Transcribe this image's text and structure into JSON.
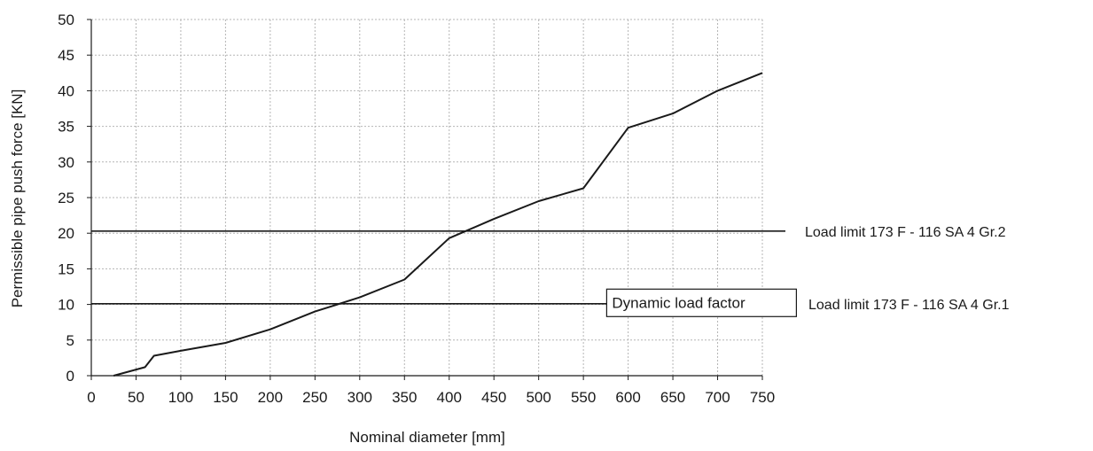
{
  "chart_data": {
    "type": "line",
    "title": "",
    "xlabel": "Nominal diameter [mm]",
    "ylabel": "Permissible pipe push force [KN]",
    "xlim": [
      0,
      750
    ],
    "ylim": [
      0,
      50
    ],
    "grid": true,
    "x_ticks": [
      0,
      50,
      100,
      150,
      200,
      250,
      300,
      350,
      400,
      450,
      500,
      550,
      600,
      650,
      700,
      750
    ],
    "y_ticks": [
      0,
      5,
      10,
      15,
      20,
      25,
      30,
      35,
      40,
      45,
      50
    ],
    "series": [
      {
        "x": [
          25,
          60,
          70,
          100,
          150,
          200,
          250,
          300,
          350,
          400,
          450,
          500,
          550,
          600,
          650,
          700,
          750
        ],
        "y": [
          0,
          1.2,
          2.8,
          3.5,
          4.6,
          6.5,
          9.0,
          11.0,
          13.5,
          19.3,
          22.0,
          24.5,
          26.3,
          34.8,
          36.8,
          40.0,
          42.5
        ]
      }
    ],
    "reference_lines": [
      {
        "y": 20.3,
        "label": "Load limit 173 F - 116 SA 4 Gr.2"
      },
      {
        "y": 10.1,
        "label": "Load limit  173 F - 116 SA 4 Gr.1"
      }
    ],
    "annotations": [
      {
        "text": "Dynamic load factor",
        "x": 578,
        "y": 10.1
      }
    ],
    "colors": {
      "line": "#1a1a1a",
      "grid": "#b5b5b5",
      "axis": "#1a1a1a",
      "background": "#ffffff"
    }
  }
}
